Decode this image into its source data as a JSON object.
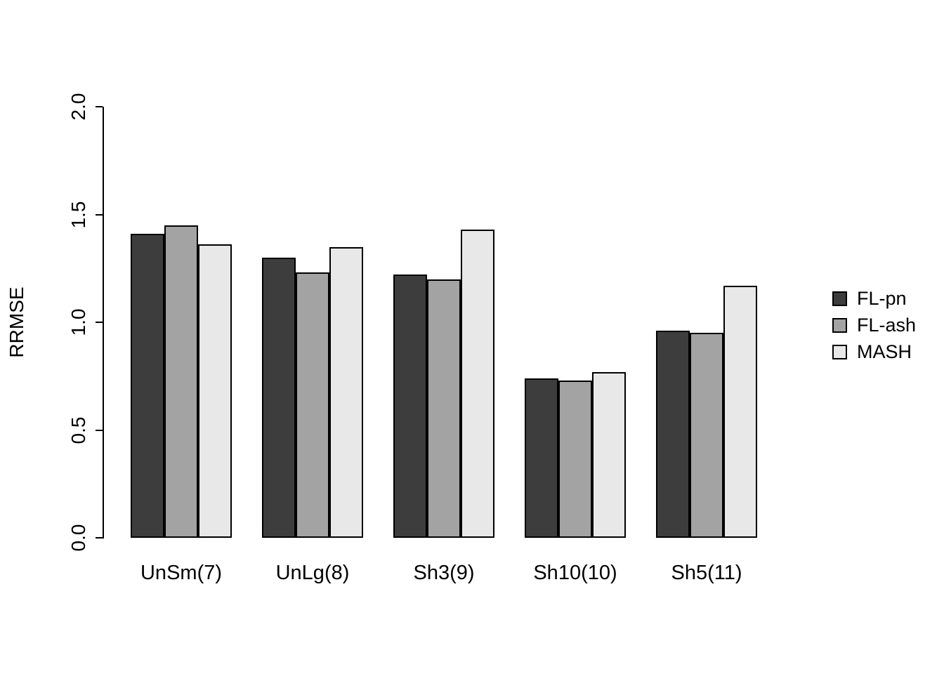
{
  "chart_data": {
    "type": "bar",
    "title": "",
    "xlabel": "",
    "ylabel": "RRMSE",
    "ylim": [
      0.0,
      2.0
    ],
    "yticks": [
      0.0,
      0.5,
      1.0,
      1.5,
      2.0
    ],
    "ytick_labels": [
      "0.0",
      "0.5",
      "1.0",
      "1.5",
      "2.0"
    ],
    "grid": false,
    "legend_position": "right",
    "categories": [
      "UnSm(7)",
      "UnLg(8)",
      "Sh3(9)",
      "Sh10(10)",
      "Sh5(11)"
    ],
    "series": [
      {
        "name": "FL-pn",
        "color": "#3d3d3d",
        "values": [
          1.41,
          1.3,
          1.22,
          0.74,
          0.96
        ]
      },
      {
        "name": "FL-ash",
        "color": "#a3a3a3",
        "values": [
          1.45,
          1.23,
          1.2,
          0.73,
          0.95
        ]
      },
      {
        "name": "MASH",
        "color": "#e8e8e8",
        "values": [
          1.36,
          1.35,
          1.43,
          0.77,
          1.17
        ]
      }
    ],
    "colors": {
      "axis": "#000000",
      "bar_border": "#000000"
    }
  }
}
